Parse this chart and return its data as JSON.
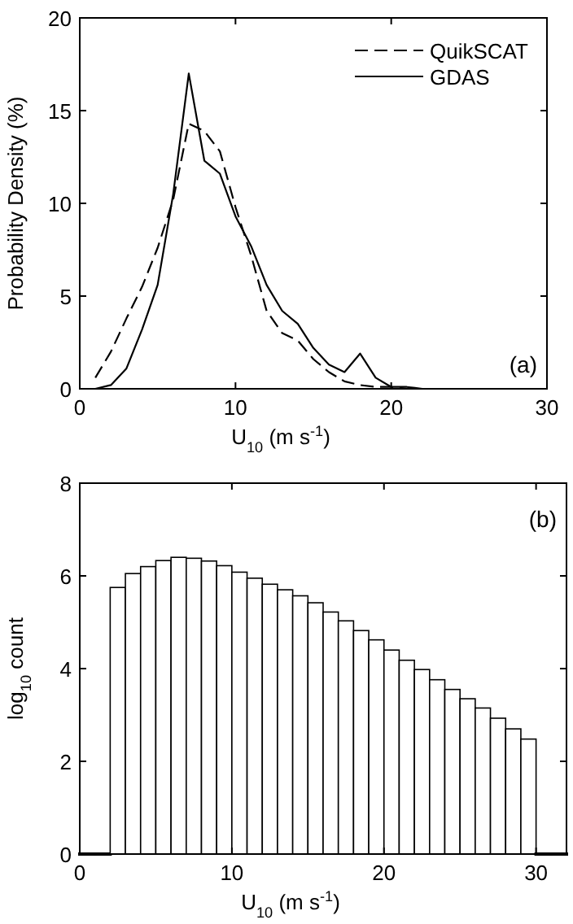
{
  "chart_data": [
    {
      "type": "line",
      "xlabel": "U$_{10}$ (m s$^{-1}$)",
      "ylabel": "Probability Density (%)",
      "xlim": [
        0,
        30
      ],
      "ylim": [
        0,
        20
      ],
      "xticks": [
        0,
        10,
        20,
        30
      ],
      "yticks": [
        0,
        5,
        10,
        15,
        20
      ],
      "legend": "top right",
      "grid": false,
      "marker": "none",
      "annotations": [
        "(a)"
      ],
      "x": [
        1,
        2,
        3,
        4,
        5,
        6,
        7,
        8,
        9,
        10,
        11,
        12,
        13,
        14,
        15,
        16,
        17,
        18,
        19,
        20,
        21,
        22,
        23,
        24,
        25
      ],
      "series": [
        {
          "name": "QuikSCAT",
          "color": "#000000",
          "line_style": "dashed",
          "values": [
            0.6,
            2.0,
            3.8,
            5.5,
            7.6,
            10.2,
            14.3,
            13.9,
            12.8,
            9.8,
            7.2,
            4.2,
            3.0,
            2.6,
            1.6,
            0.9,
            0.4,
            0.2,
            0.1,
            0.1,
            0,
            0,
            0,
            0,
            0
          ]
        },
        {
          "name": "GDAS",
          "color": "#000000",
          "line_style": "solid",
          "values": [
            0,
            0.2,
            1.1,
            3.2,
            5.6,
            10.5,
            17.0,
            12.3,
            11.6,
            9.3,
            7.7,
            5.6,
            4.2,
            3.5,
            2.2,
            1.3,
            0.9,
            1.9,
            0.6,
            0.1,
            0.1,
            0,
            0,
            0,
            0
          ]
        }
      ]
    },
    {
      "type": "histogram",
      "xlabel": "U$_{10}$ (m s$^{-1}$)",
      "ylabel": "log$_{10}$ count",
      "xlim": [
        0,
        32
      ],
      "ylim": [
        0,
        8
      ],
      "xticks": [
        0,
        10,
        20,
        30
      ],
      "yticks": [
        0,
        2,
        4,
        6,
        8
      ],
      "grid": false,
      "color": "#ffffff",
      "annotations": [
        "(b)"
      ],
      "bins": [
        0,
        1,
        2,
        3,
        4,
        5,
        6,
        7,
        8,
        9,
        10,
        11,
        12,
        13,
        14,
        15,
        16,
        17,
        18,
        19,
        20,
        21,
        22,
        23,
        24,
        25,
        26,
        27,
        28,
        29,
        30,
        31,
        32
      ],
      "values": [
        0,
        0,
        5.75,
        6.05,
        6.2,
        6.33,
        6.4,
        6.38,
        6.32,
        6.22,
        6.08,
        5.95,
        5.82,
        5.7,
        5.57,
        5.42,
        5.22,
        5.03,
        4.82,
        4.62,
        4.4,
        4.18,
        3.98,
        3.76,
        3.55,
        3.35,
        3.15,
        2.93,
        2.7,
        2.48,
        0,
        0
      ]
    }
  ]
}
